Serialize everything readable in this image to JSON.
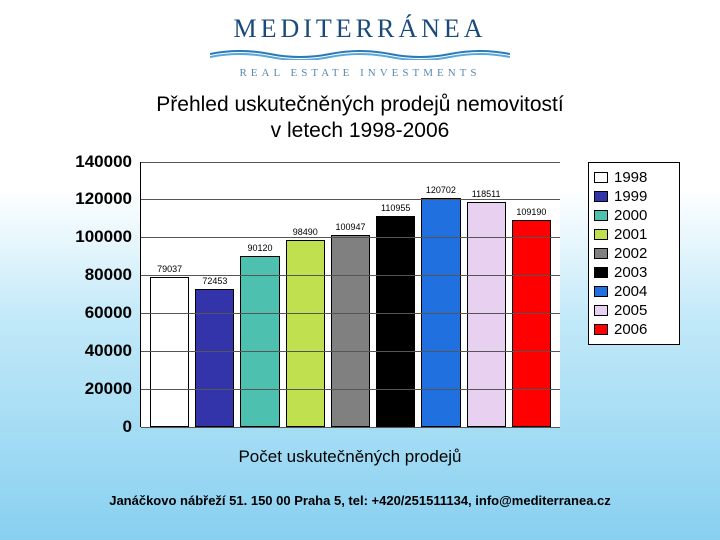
{
  "logo": {
    "main": "MEDITERRÁNEA",
    "sub": "REAL ESTATE INVESTMENTS",
    "wave_color1": "#2a7ab8",
    "wave_color2": "#5aa8d8"
  },
  "title_line1": "Přehled uskutečněných prodejů nemovitostí",
  "title_line2": "v letech 1998-2006",
  "chart": {
    "type": "bar",
    "ymax": 140000,
    "ymin": 0,
    "ytick_step": 20000,
    "yticks": [
      "140000",
      "120000",
      "100000",
      "80000",
      "60000",
      "40000",
      "20000",
      "0"
    ],
    "yticks_values": [
      140000,
      120000,
      100000,
      80000,
      60000,
      40000,
      20000,
      0
    ],
    "background_color": "#ffffff",
    "grid_color": "#555555",
    "axis_color": "#000000",
    "label_fontsize": 17,
    "value_fontsize": 9,
    "series": [
      {
        "year": "1998",
        "value": 79037,
        "color": "#ffffff"
      },
      {
        "year": "1999",
        "value": 72453,
        "color": "#3333aa"
      },
      {
        "year": "2000",
        "value": 90120,
        "color": "#4dc0b0"
      },
      {
        "year": "2001",
        "value": 98490,
        "color": "#c0e050"
      },
      {
        "year": "2002",
        "value": 100947,
        "color": "#808080"
      },
      {
        "year": "2003",
        "value": 110955,
        "color": "#000000"
      },
      {
        "year": "2004",
        "value": 120702,
        "color": "#2070e0"
      },
      {
        "year": "2005",
        "value": 118511,
        "color": "#e8d0f0"
      },
      {
        "year": "2006",
        "value": 109190,
        "color": "#ff0000"
      }
    ],
    "xlabel": "Počet uskutečněných prodejů"
  },
  "footer": "Janáčkovo nábřeží 51. 150 00 Praha 5, tel: +420/251511134, info@mediterranea.cz"
}
